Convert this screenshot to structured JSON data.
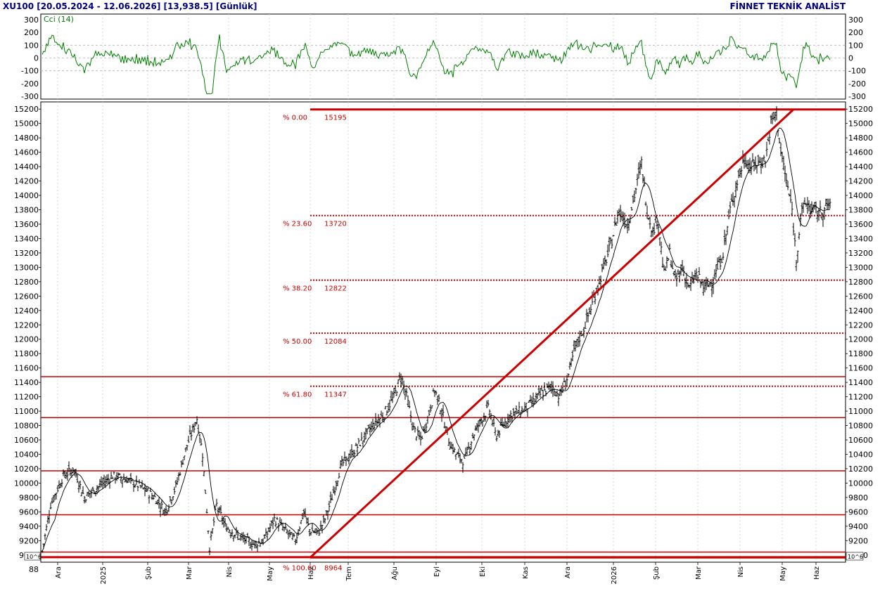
{
  "header": {
    "title": "XU100  [20.05.2024 - 12.06.2026]  [13,938.5]  [Günlük]",
    "brand": "FİNNET TEKNİK ANALİST"
  },
  "colors": {
    "candle": "#000000",
    "sma": "#000000",
    "cci": "#008000",
    "support": "#cc0000",
    "fib": "#cc0000",
    "grid": "#c8c8c8"
  },
  "cci_panel": {
    "label": "Cci (14)",
    "ticks": [
      "300",
      "200",
      "100",
      "0",
      "-100",
      "-200",
      "-300"
    ],
    "range": [
      -300,
      300
    ]
  },
  "scale_badge_left": "10^6",
  "scale_badge_right": "10^6",
  "chart_data": {
    "type": "candlestick",
    "ylim": [
      8900,
      15300
    ],
    "y_ticks": [
      9000,
      9200,
      9400,
      9600,
      9800,
      10000,
      10200,
      10400,
      10600,
      10800,
      11000,
      11200,
      11400,
      11600,
      11800,
      12000,
      12200,
      12400,
      12600,
      12800,
      13000,
      13200,
      13400,
      13600,
      13800,
      14000,
      14200,
      14400,
      14600,
      14800,
      15000,
      15200
    ],
    "y_tick_labels": [
      "9000",
      "9200",
      "9400",
      "9600",
      "9800",
      "10000",
      "10200",
      "10400",
      "10600",
      "10800",
      "11000",
      "11200",
      "11400",
      "11600",
      "11800",
      "12000",
      "12200",
      "12400",
      "12600",
      "12800",
      "13000",
      "13200",
      "13400",
      "13600",
      "13800",
      "14000",
      "14200",
      "14400",
      "14600",
      "14800",
      "15000",
      "15200"
    ],
    "y_bottom_partial": "88",
    "x_labels": [
      "Ara",
      "2025",
      "Şub",
      "Mar",
      "Nis",
      "May",
      "Haz",
      "Tem",
      "Ağu",
      "Eyl",
      "Eki",
      "Kas",
      "Ara",
      "2026",
      "Şub",
      "Mar",
      "Nis",
      "May",
      "Haz"
    ],
    "support_levels": [
      11480,
      10910,
      10170,
      9560,
      9040,
      8970
    ],
    "fibonacci": [
      {
        "pct": "% 0.00",
        "value": 15195,
        "label": "15195"
      },
      {
        "pct": "% 23.60",
        "value": 13720,
        "label": "13720"
      },
      {
        "pct": "% 38.20",
        "value": 12822,
        "label": "12822"
      },
      {
        "pct": "% 50.00",
        "value": 12084,
        "label": "12084"
      },
      {
        "pct": "% 61.80",
        "value": 11347,
        "label": "11347"
      },
      {
        "pct": "% 100.00",
        "value": 8964,
        "label": "8964"
      }
    ],
    "trend_line": {
      "from": {
        "date": "Haz 2025",
        "value": 8964
      },
      "to": {
        "date": "May 2026",
        "value": 15195
      }
    },
    "price_path": [
      [
        0,
        9050
      ],
      [
        12,
        9700
      ],
      [
        30,
        10100
      ],
      [
        45,
        10200
      ],
      [
        60,
        9800
      ],
      [
        80,
        9950
      ],
      [
        100,
        10100
      ],
      [
        120,
        10050
      ],
      [
        140,
        9950
      ],
      [
        160,
        9800
      ],
      [
        175,
        9600
      ],
      [
        190,
        9950
      ],
      [
        205,
        10500
      ],
      [
        220,
        10900
      ],
      [
        228,
        10400
      ],
      [
        238,
        9100
      ],
      [
        248,
        9700
      ],
      [
        260,
        9400
      ],
      [
        280,
        9250
      ],
      [
        300,
        9150
      ],
      [
        315,
        9200
      ],
      [
        330,
        9500
      ],
      [
        345,
        9350
      ],
      [
        360,
        9200
      ],
      [
        372,
        9600
      ],
      [
        380,
        9350
      ],
      [
        392,
        9300
      ],
      [
        402,
        9500
      ],
      [
        412,
        9800
      ],
      [
        425,
        10250
      ],
      [
        440,
        10400
      ],
      [
        455,
        10600
      ],
      [
        470,
        10800
      ],
      [
        485,
        10950
      ],
      [
        500,
        11200
      ],
      [
        510,
        11500
      ],
      [
        518,
        11200
      ],
      [
        528,
        10750
      ],
      [
        538,
        10600
      ],
      [
        548,
        10900
      ],
      [
        558,
        11300
      ],
      [
        568,
        11000
      ],
      [
        578,
        10600
      ],
      [
        588,
        10400
      ],
      [
        600,
        10300
      ],
      [
        612,
        10650
      ],
      [
        625,
        10900
      ],
      [
        635,
        11050
      ],
      [
        645,
        10650
      ],
      [
        655,
        10800
      ],
      [
        665,
        10950
      ],
      [
        680,
        11000
      ],
      [
        695,
        11100
      ],
      [
        710,
        11250
      ],
      [
        725,
        11350
      ],
      [
        735,
        11200
      ],
      [
        748,
        11500
      ],
      [
        758,
        11900
      ],
      [
        770,
        12150
      ],
      [
        782,
        12500
      ],
      [
        795,
        12900
      ],
      [
        808,
        13300
      ],
      [
        820,
        13800
      ],
      [
        832,
        13600
      ],
      [
        842,
        14000
      ],
      [
        852,
        14450
      ],
      [
        860,
        13800
      ],
      [
        868,
        13500
      ],
      [
        875,
        13700
      ],
      [
        884,
        12900
      ],
      [
        892,
        13200
      ],
      [
        900,
        12800
      ],
      [
        910,
        13000
      ],
      [
        920,
        12700
      ],
      [
        930,
        12900
      ],
      [
        942,
        12700
      ],
      [
        955,
        12850
      ],
      [
        968,
        13200
      ],
      [
        978,
        13800
      ],
      [
        988,
        14200
      ],
      [
        998,
        14500
      ],
      [
        1008,
        14400
      ],
      [
        1018,
        14450
      ],
      [
        1028,
        14500
      ],
      [
        1036,
        15000
      ],
      [
        1044,
        15150
      ],
      [
        1050,
        14600
      ],
      [
        1058,
        14200
      ],
      [
        1066,
        13800
      ],
      [
        1072,
        13100
      ],
      [
        1078,
        13700
      ],
      [
        1085,
        13900
      ],
      [
        1095,
        13800
      ],
      [
        1105,
        13750
      ],
      [
        1112,
        13800
      ],
      [
        1120,
        13900
      ]
    ]
  }
}
